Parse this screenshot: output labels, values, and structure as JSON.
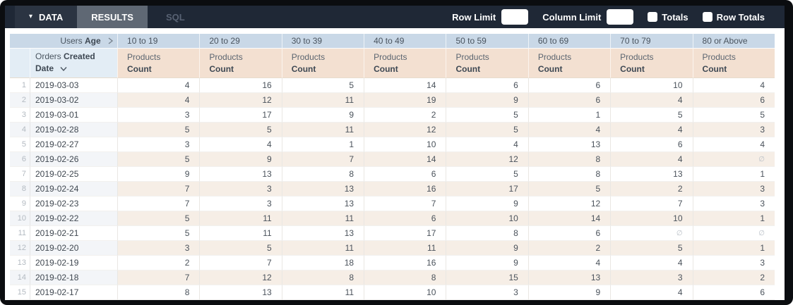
{
  "topbar": {
    "data_tab": "DATA",
    "results_tab": "RESULTS",
    "sql_tab": "SQL",
    "row_limit_label": "Row Limit",
    "row_limit_value": "",
    "column_limit_label": "Column Limit",
    "column_limit_value": "",
    "totals_label": "Totals",
    "totals_checked": false,
    "row_totals_label": "Row Totals",
    "row_totals_checked": false
  },
  "table": {
    "pivot_field": {
      "prefix": "Users",
      "name": "Age"
    },
    "row_field": {
      "prefix": "Orders",
      "name": "Created Date"
    },
    "measure": {
      "prefix": "Products",
      "name": "Count"
    },
    "pivot_values": [
      "10 to 19",
      "20 to 29",
      "30 to 39",
      "40 to 49",
      "50 to 59",
      "60 to 69",
      "70 to 79",
      "80 or Above"
    ],
    "null_symbol": "∅",
    "rows": [
      {
        "num": 1,
        "date": "2019-03-03",
        "values": [
          4,
          16,
          5,
          14,
          6,
          6,
          10,
          4
        ]
      },
      {
        "num": 2,
        "date": "2019-03-02",
        "values": [
          4,
          12,
          11,
          19,
          9,
          6,
          4,
          6
        ]
      },
      {
        "num": 3,
        "date": "2019-03-01",
        "values": [
          3,
          17,
          9,
          2,
          5,
          1,
          5,
          5
        ]
      },
      {
        "num": 4,
        "date": "2019-02-28",
        "values": [
          5,
          5,
          11,
          12,
          5,
          4,
          4,
          3
        ]
      },
      {
        "num": 5,
        "date": "2019-02-27",
        "values": [
          3,
          4,
          1,
          10,
          4,
          13,
          6,
          4
        ]
      },
      {
        "num": 6,
        "date": "2019-02-26",
        "values": [
          5,
          9,
          7,
          14,
          12,
          8,
          4,
          null
        ]
      },
      {
        "num": 7,
        "date": "2019-02-25",
        "values": [
          9,
          13,
          8,
          6,
          5,
          8,
          13,
          1
        ]
      },
      {
        "num": 8,
        "date": "2019-02-24",
        "values": [
          7,
          3,
          13,
          16,
          17,
          5,
          2,
          3
        ]
      },
      {
        "num": 9,
        "date": "2019-02-23",
        "values": [
          7,
          3,
          13,
          7,
          9,
          12,
          7,
          3
        ]
      },
      {
        "num": 10,
        "date": "2019-02-22",
        "values": [
          5,
          11,
          11,
          6,
          10,
          14,
          10,
          1
        ]
      },
      {
        "num": 11,
        "date": "2019-02-21",
        "values": [
          5,
          11,
          13,
          17,
          8,
          6,
          null,
          null
        ]
      },
      {
        "num": 12,
        "date": "2019-02-20",
        "values": [
          3,
          5,
          11,
          11,
          9,
          2,
          5,
          1
        ]
      },
      {
        "num": 13,
        "date": "2019-02-19",
        "values": [
          2,
          7,
          18,
          16,
          9,
          4,
          4,
          3
        ]
      },
      {
        "num": 14,
        "date": "2019-02-18",
        "values": [
          7,
          12,
          8,
          8,
          15,
          13,
          3,
          2
        ]
      },
      {
        "num": 15,
        "date": "2019-02-17",
        "values": [
          8,
          13,
          11,
          10,
          3,
          9,
          4,
          6
        ]
      }
    ]
  },
  "colors": {
    "frame_bg": "#0b0d10",
    "topbar_bg": "#1f2836",
    "data_tab_bg": "#2b3442",
    "results_tab_bg": "#5f6874",
    "sql_text": "#586273",
    "pivot_header_bg": "#c9d8e7",
    "dimension_header_bg": "#e3edf5",
    "measure_header_bg": "#f3e0d1",
    "even_row_dimension_bg": "#f3f5f8",
    "even_row_measure_bg": "#f6eee6",
    "null_text": "#b8bfc6"
  }
}
